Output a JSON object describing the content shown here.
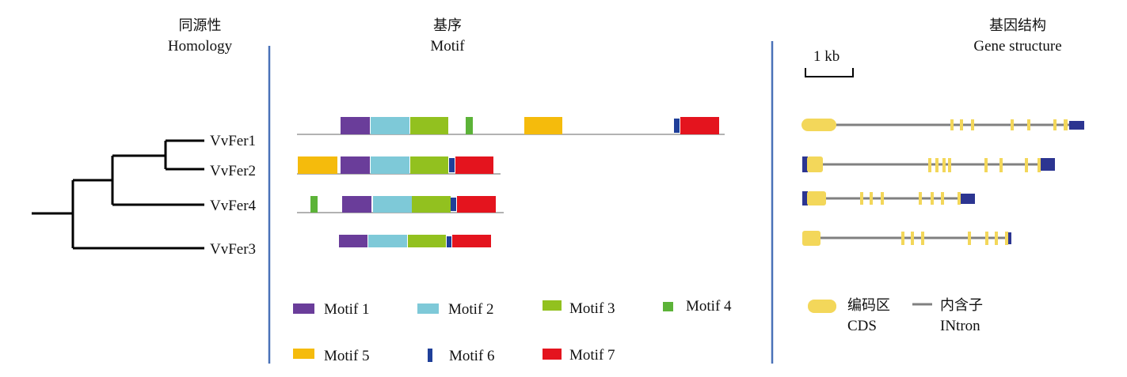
{
  "headers": {
    "homology": {
      "zh": "同源性",
      "en": "Homology"
    },
    "motif": {
      "zh": "基序",
      "en": "Motif"
    },
    "gene_structure": {
      "zh": "基因结构",
      "en": "Gene structure"
    }
  },
  "genes": [
    "VvFer1",
    "VvFer2",
    "VvFer4",
    "VvFer3"
  ],
  "scale_bar": "1 kb",
  "motif_colors": {
    "Motif 1": "#6a3d9a",
    "Motif 2": "#7ec9d8",
    "Motif 3": "#92c11f",
    "Motif 4": "#5cb338",
    "Motif 5": "#f5bb0c",
    "Motif 6": "#1f3f99",
    "Motif 7": "#e4141e"
  },
  "motif_legend": [
    "Motif 1",
    "Motif 2",
    "Motif 3",
    "Motif 4",
    "Motif 5",
    "Motif 6",
    "Motif 7"
  ],
  "structure_legend": {
    "cds_zh": "编码区",
    "cds_en": "CDS",
    "intron_zh": "内含子",
    "intron_en": "INtron"
  },
  "colors": {
    "divider": "#4a72b8",
    "cds": "#f3d75a",
    "utr": "#2c3591",
    "intron": "#808080"
  }
}
